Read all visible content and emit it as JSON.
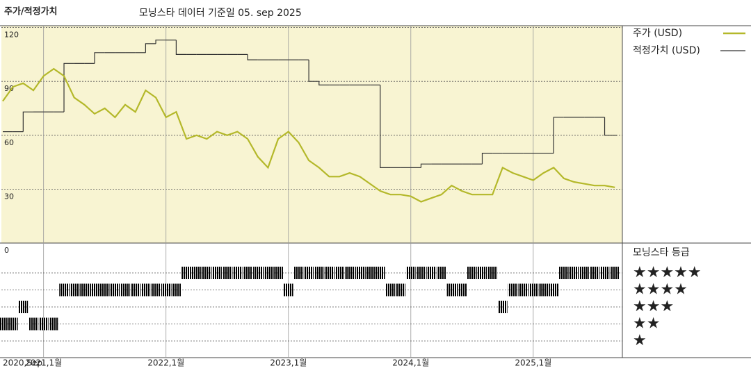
{
  "chart_data": {
    "type": "line",
    "title": "주가/적정가치",
    "subtitle": "모닝스타 데이터 기준일 05. sep 2025",
    "x": [
      "2020-09",
      "2020-10",
      "2020-11",
      "2020-12",
      "2021-01",
      "2021-02",
      "2021-03",
      "2021-04",
      "2021-05",
      "2021-06",
      "2021-07",
      "2021-08",
      "2021-09",
      "2021-10",
      "2021-11",
      "2021-12",
      "2022-01",
      "2022-02",
      "2022-03",
      "2022-04",
      "2022-05",
      "2022-06",
      "2022-07",
      "2022-08",
      "2022-09",
      "2022-10",
      "2022-11",
      "2022-12",
      "2023-01",
      "2023-02",
      "2023-03",
      "2023-04",
      "2023-05",
      "2023-06",
      "2023-07",
      "2023-08",
      "2023-09",
      "2023-10",
      "2023-11",
      "2023-12",
      "2024-01",
      "2024-02",
      "2024-03",
      "2024-04",
      "2024-05",
      "2024-06",
      "2024-07",
      "2024-08",
      "2024-09",
      "2024-10",
      "2024-11",
      "2024-12",
      "2025-01",
      "2025-02",
      "2025-03",
      "2025-04",
      "2025-05",
      "2025-06",
      "2025-07",
      "2025-08",
      "2025-09"
    ],
    "xticks": [
      {
        "value": "2020-09",
        "label": "2020,Sep"
      },
      {
        "value": "2021-01",
        "label": "2021,1월"
      },
      {
        "value": "2022-01",
        "label": "2022,1월"
      },
      {
        "value": "2023-01",
        "label": "2023,1월"
      },
      {
        "value": "2024-01",
        "label": "2024,1월"
      },
      {
        "value": "2025-01",
        "label": "2025,1월"
      }
    ],
    "series": [
      {
        "name": "주가 (USD)",
        "color": "#b4b82a",
        "style": "line",
        "values": [
          79,
          87,
          89,
          85,
          93,
          97,
          93,
          81,
          77,
          72,
          75,
          70,
          77,
          73,
          85,
          81,
          70,
          73,
          58,
          60,
          58,
          62,
          60,
          62,
          58,
          48,
          42,
          58,
          62,
          56,
          46,
          42,
          37,
          37,
          39,
          37,
          33,
          29,
          27,
          27,
          26,
          23,
          25,
          27,
          32,
          29,
          27,
          27,
          27,
          42,
          39,
          37,
          35,
          39,
          42,
          36,
          34,
          33,
          32,
          32,
          31
        ]
      },
      {
        "name": "적정가치 (USD)",
        "color": "#333333",
        "style": "step",
        "values": [
          62,
          62,
          73,
          73,
          73,
          73,
          100,
          100,
          100,
          106,
          106,
          106,
          106,
          106,
          111,
          113,
          113,
          105,
          105,
          105,
          105,
          105,
          105,
          105,
          102,
          102,
          102,
          102,
          102,
          102,
          90,
          88,
          88,
          88,
          88,
          88,
          88,
          42,
          42,
          42,
          42,
          44,
          44,
          44,
          44,
          44,
          44,
          50,
          50,
          50,
          50,
          50,
          50,
          50,
          70,
          70,
          70,
          70,
          70,
          60,
          60
        ]
      }
    ],
    "ylim": [
      0,
      121
    ],
    "yticks": [
      0,
      30,
      60,
      90,
      120
    ],
    "grid": true,
    "rating_title": "모닝스타 등급",
    "rating_levels": [
      "★★★★★",
      "★★★★",
      "★★★",
      "★★",
      "★"
    ],
    "rating_colors": [
      "#222222",
      "#222222",
      "#222222",
      "#222222",
      "#2e7d62"
    ],
    "ratings": [
      2,
      2,
      3,
      2,
      2,
      2,
      4,
      4,
      4,
      4,
      4,
      4,
      4,
      4,
      4,
      4,
      4,
      4,
      5,
      5,
      5,
      5,
      5,
      5,
      5,
      5,
      5,
      5,
      4,
      5,
      5,
      5,
      5,
      5,
      5,
      5,
      5,
      5,
      4,
      4,
      5,
      5,
      5,
      5,
      4,
      4,
      5,
      5,
      5,
      3,
      4,
      4,
      4,
      4,
      4,
      5,
      5,
      5,
      5,
      5,
      5
    ]
  }
}
